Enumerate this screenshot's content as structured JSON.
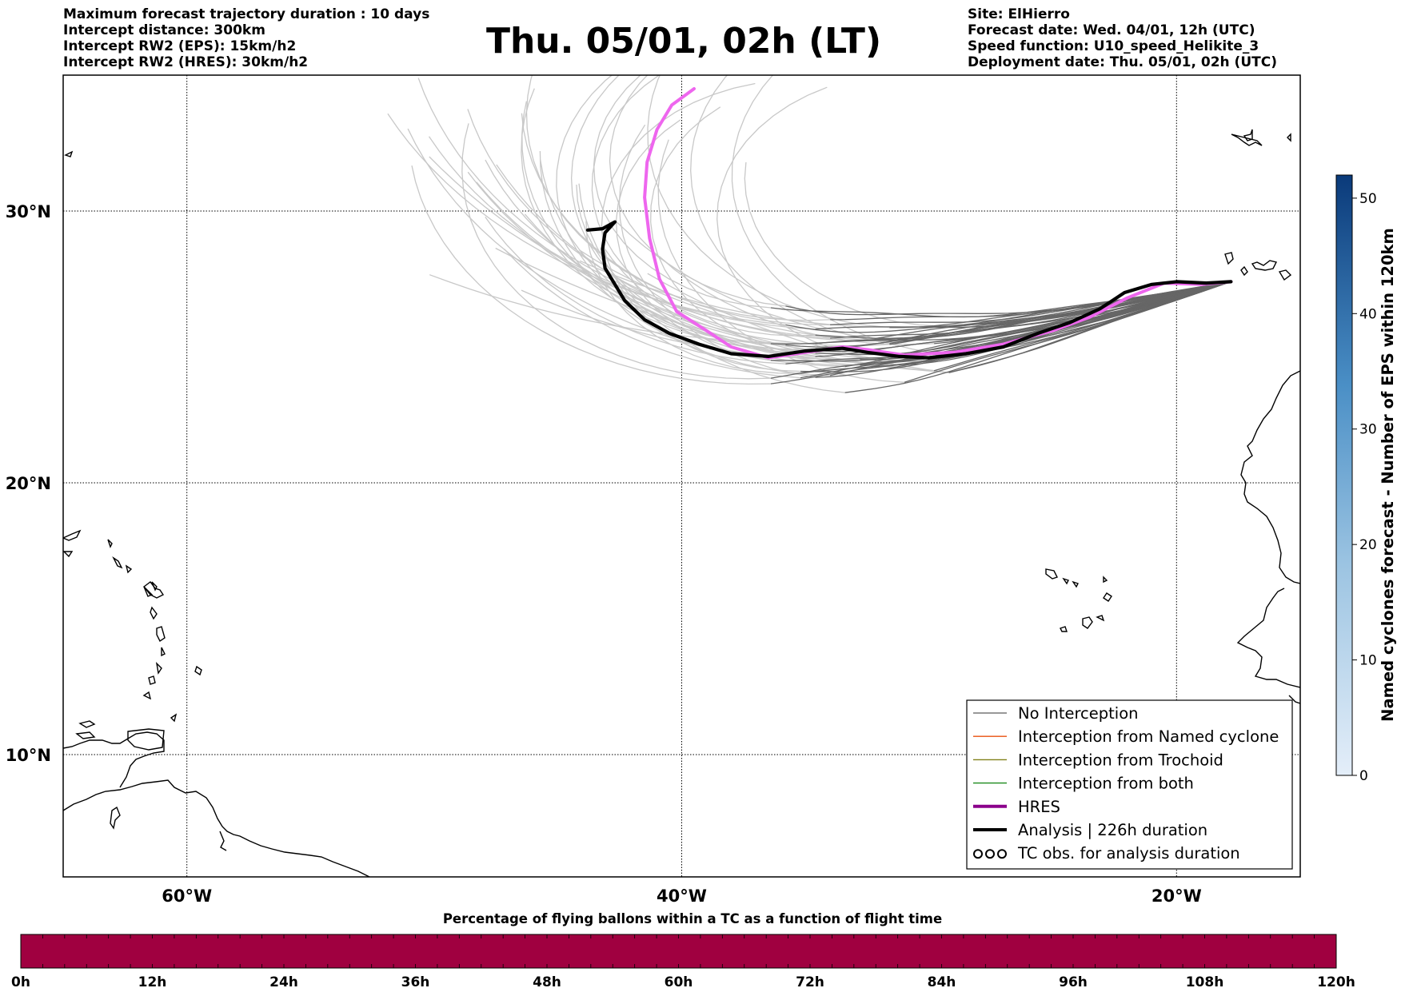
{
  "header": {
    "left_lines": [
      "Maximum forecast trajectory duration : 10 days",
      "Intercept distance: 300km",
      "Intercept RW2 (EPS):  15km/h2",
      "Intercept RW2 (HRES): 30km/h2"
    ],
    "title": "Thu. 05/01, 02h (LT)",
    "right_lines": [
      "Site: ElHierro",
      "Forecast date: Wed. 04/01, 12h (UTC)",
      "Speed function: U10_speed_Helikite_3",
      "Deployment date: Thu. 05/01, 02h (UTC)"
    ]
  },
  "map": {
    "lon_range": [
      -65,
      -15
    ],
    "lat_range": [
      5.5,
      35
    ],
    "lon_ticks": [
      {
        "value": -60,
        "label": "60°W"
      },
      {
        "value": -40,
        "label": "40°W"
      },
      {
        "value": -20,
        "label": "20°W"
      }
    ],
    "lat_ticks": [
      {
        "value": 30,
        "label": "30°N"
      },
      {
        "value": 20,
        "label": "20°N"
      },
      {
        "value": 10,
        "label": "10°N"
      }
    ],
    "grid": true
  },
  "legend": {
    "items": [
      {
        "label": "No Interception",
        "color": "#777777",
        "style": "thin"
      },
      {
        "label": "Interception from Named cyclone",
        "color": "#e8500e",
        "style": "thin"
      },
      {
        "label": "Interception from Trochoid",
        "color": "#808018",
        "style": "thin"
      },
      {
        "label": "Interception from both",
        "color": "#1a8a1a",
        "style": "thin"
      },
      {
        "label": "HRES",
        "color": "#8b008b",
        "style": "thick"
      },
      {
        "label": "Analysis | 226h duration",
        "color": "#000000",
        "style": "thick"
      },
      {
        "label": "TC obs. for analysis duration",
        "color": "#000000",
        "style": "symbol"
      }
    ]
  },
  "colorbar": {
    "label": "Named cyclones forecast - Number of EPS within 120km",
    "min": 0,
    "max": 52,
    "ticks": [
      {
        "value": 0,
        "label": "0"
      },
      {
        "value": 10,
        "label": "10"
      },
      {
        "value": 20,
        "label": "20"
      },
      {
        "value": 30,
        "label": "30"
      },
      {
        "value": 40,
        "label": "40"
      },
      {
        "value": 50,
        "label": "50"
      }
    ],
    "color_low": "#e4eef9",
    "color_high": "#0a3a7a"
  },
  "flight_time_bar": {
    "title": "Percentage of flying ballons within a TC as a function of flight time",
    "color": "#a00040",
    "ticks": [
      "0h",
      "12h",
      "24h",
      "36h",
      "48h",
      "60h",
      "72h",
      "84h",
      "96h",
      "108h",
      "120h"
    ]
  },
  "chart_data": {
    "type": "line",
    "title": "Thu. 05/01, 02h (LT)",
    "xlabel": "",
    "ylabel": "",
    "xlim": [
      -65,
      -15
    ],
    "ylim": [
      5.5,
      35
    ],
    "x_ticks": [
      "60°W",
      "40°W",
      "20°W"
    ],
    "y_ticks": [
      "30°N",
      "20°N",
      "10°N"
    ],
    "legend_position": "bottom-right",
    "series": [
      {
        "name": "HRES",
        "color": "#ee66ee",
        "points": [
          [
            -17.8,
            27.4
          ],
          [
            -19,
            27.3
          ],
          [
            -20.5,
            27.35
          ],
          [
            -22,
            26.8
          ],
          [
            -23.5,
            26.1
          ],
          [
            -25,
            25.6
          ],
          [
            -27,
            25.1
          ],
          [
            -29,
            24.8
          ],
          [
            -31,
            24.7
          ],
          [
            -32.5,
            24.9
          ],
          [
            -33.5,
            25.0
          ],
          [
            -35,
            24.8
          ],
          [
            -36.5,
            24.6
          ],
          [
            -38,
            25.0
          ],
          [
            -39,
            25.6
          ],
          [
            -40.2,
            26.3
          ],
          [
            -40.9,
            27.5
          ],
          [
            -41.3,
            29.0
          ],
          [
            -41.5,
            30.5
          ],
          [
            -41.4,
            31.8
          ],
          [
            -41.0,
            33.0
          ],
          [
            -40.4,
            33.9
          ],
          [
            -39.5,
            34.5
          ]
        ]
      },
      {
        "name": "Analysis | 226h duration",
        "color": "#000000",
        "points": [
          [
            -17.8,
            27.4
          ],
          [
            -18.8,
            27.35
          ],
          [
            -20,
            27.4
          ],
          [
            -21,
            27.3
          ],
          [
            -22.1,
            27.0
          ],
          [
            -23.1,
            26.4
          ],
          [
            -24.3,
            25.9
          ],
          [
            -25.6,
            25.5
          ],
          [
            -27,
            25.0
          ],
          [
            -28.5,
            24.75
          ],
          [
            -30,
            24.6
          ],
          [
            -31.2,
            24.65
          ],
          [
            -32.5,
            24.8
          ],
          [
            -33.5,
            24.95
          ],
          [
            -35,
            24.85
          ],
          [
            -36.5,
            24.65
          ],
          [
            -38,
            24.75
          ],
          [
            -39.3,
            25.1
          ],
          [
            -40.5,
            25.5
          ],
          [
            -41.5,
            26.0
          ],
          [
            -42.3,
            26.7
          ],
          [
            -42.7,
            27.3
          ],
          [
            -43.1,
            27.9
          ],
          [
            -43.2,
            28.6
          ],
          [
            -43.1,
            29.2
          ],
          [
            -42.8,
            29.5
          ],
          [
            -42.7,
            29.6
          ],
          [
            -43.2,
            29.35
          ],
          [
            -43.8,
            29.3
          ]
        ]
      }
    ]
  }
}
